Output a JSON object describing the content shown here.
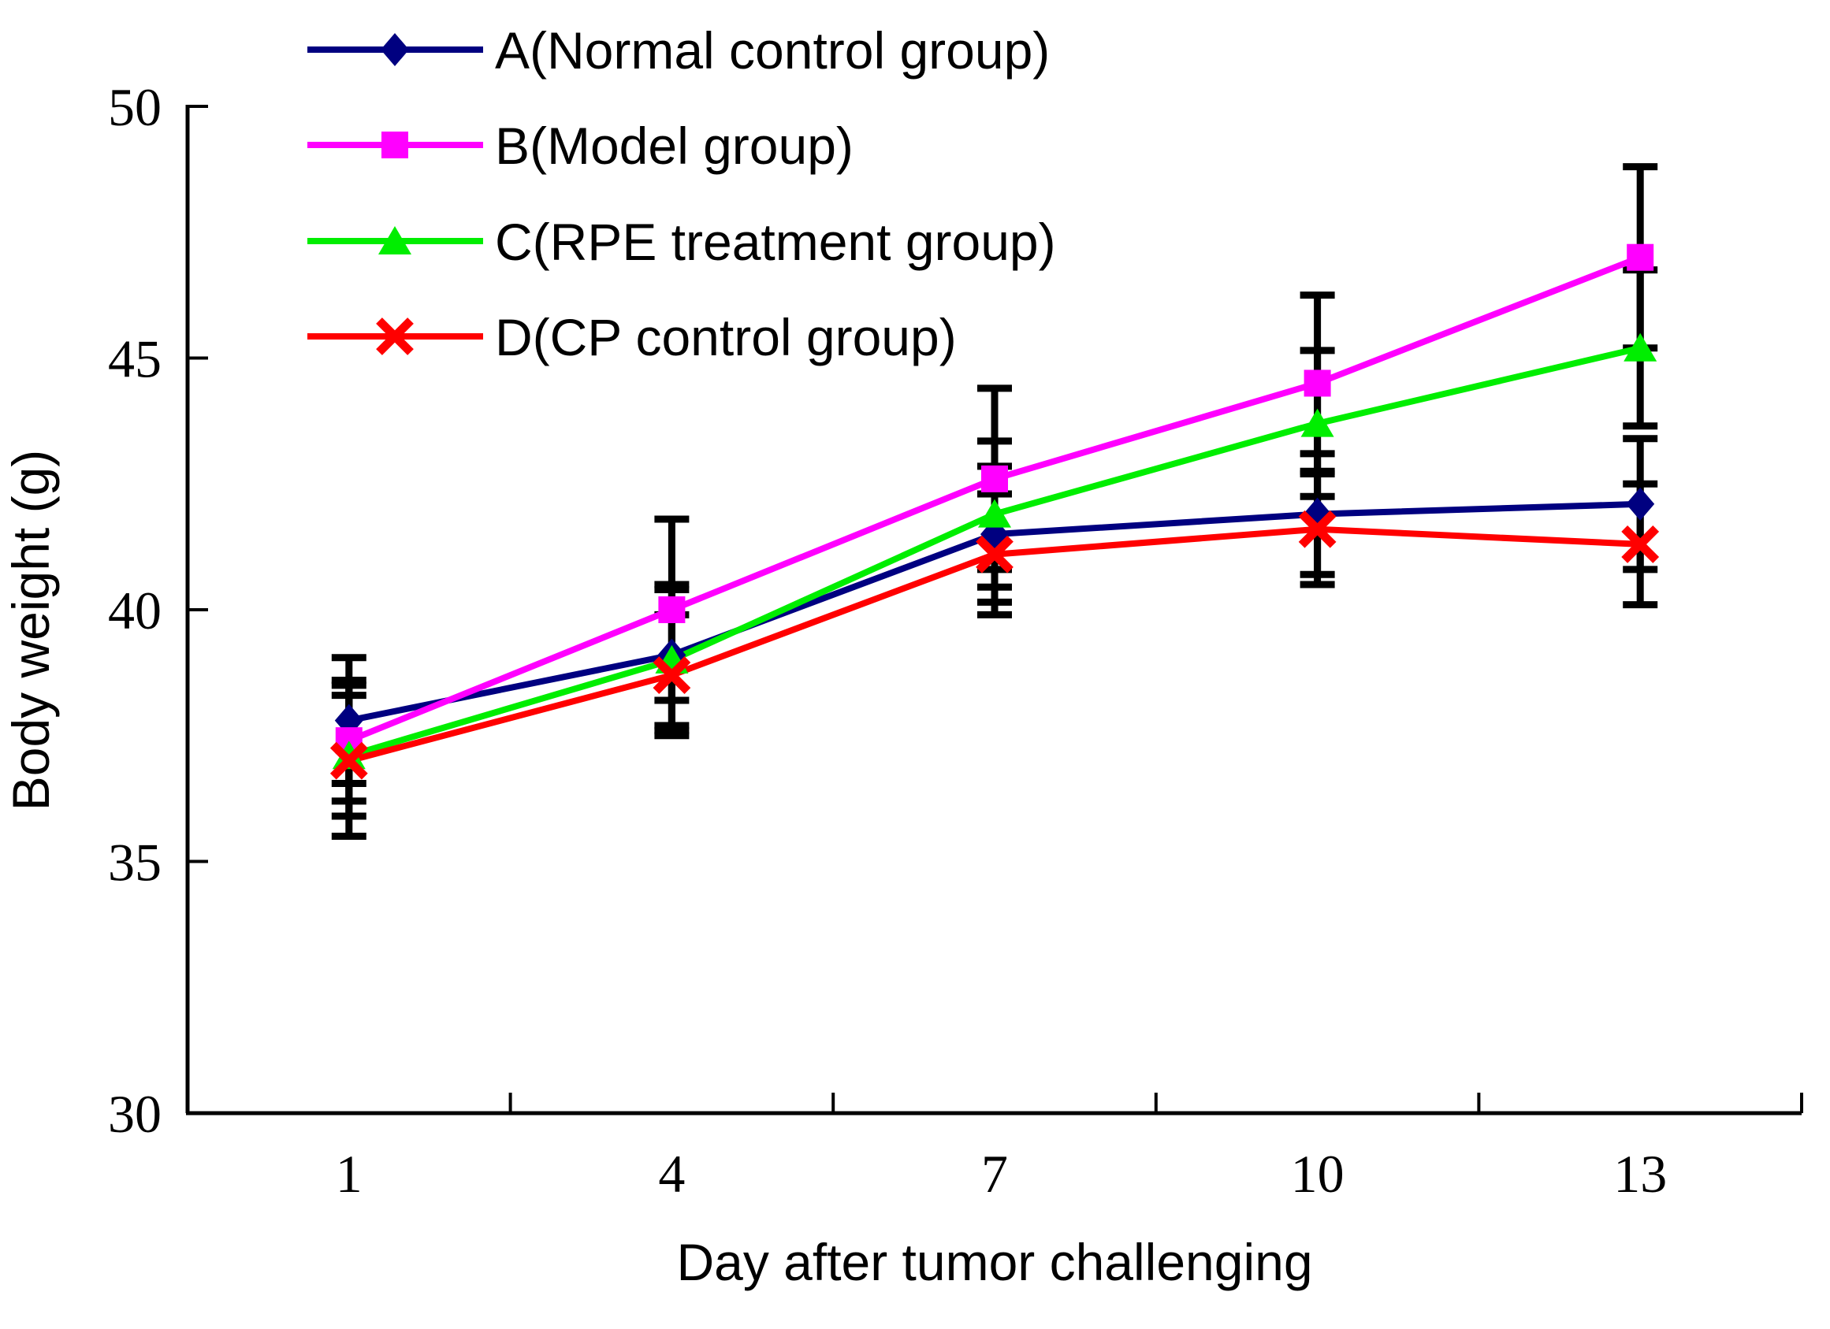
{
  "figure": {
    "background": "#FFFFFF",
    "axis_color": "#000000"
  },
  "chart_data": {
    "type": "line",
    "title": "",
    "xlabel": "Day after tumor challenging",
    "ylabel": "Body weight (g)",
    "categories": [
      "1",
      "4",
      "7",
      "10",
      "13"
    ],
    "ylim": [
      30,
      50
    ],
    "yticks": [
      "30",
      "35",
      "40",
      "45",
      "50"
    ],
    "ytick_values": [
      30,
      35,
      40,
      45,
      50
    ],
    "grid": false,
    "legend_position": "top-left-inside",
    "error_bars": true,
    "error_bar_color": "#000000",
    "series": [
      {
        "name": "A(Normal control group)",
        "marker": "diamond",
        "color": "#000080",
        "values": [
          37.8,
          39.1,
          41.5,
          41.9,
          42.1
        ],
        "errors": [
          1.25,
          1.4,
          1.35,
          1.2,
          1.3
        ]
      },
      {
        "name": "B(Model group)",
        "marker": "square",
        "color": "#FF00FF",
        "values": [
          37.4,
          40.0,
          42.6,
          44.5,
          47.0
        ],
        "errors": [
          1.2,
          1.8,
          1.8,
          1.75,
          1.8
        ]
      },
      {
        "name": "C(RPE treatment group)",
        "marker": "triangle-up",
        "color": "#00EE00",
        "values": [
          37.1,
          39.0,
          41.9,
          43.7,
          45.2
        ],
        "errors": [
          1.2,
          1.4,
          1.45,
          1.45,
          1.55
        ]
      },
      {
        "name": "D(CP control group)",
        "marker": "x",
        "color": "#FF0000",
        "values": [
          37.0,
          38.7,
          41.1,
          41.6,
          41.3
        ],
        "errors": [
          1.5,
          1.2,
          1.2,
          1.1,
          1.2
        ]
      }
    ]
  }
}
